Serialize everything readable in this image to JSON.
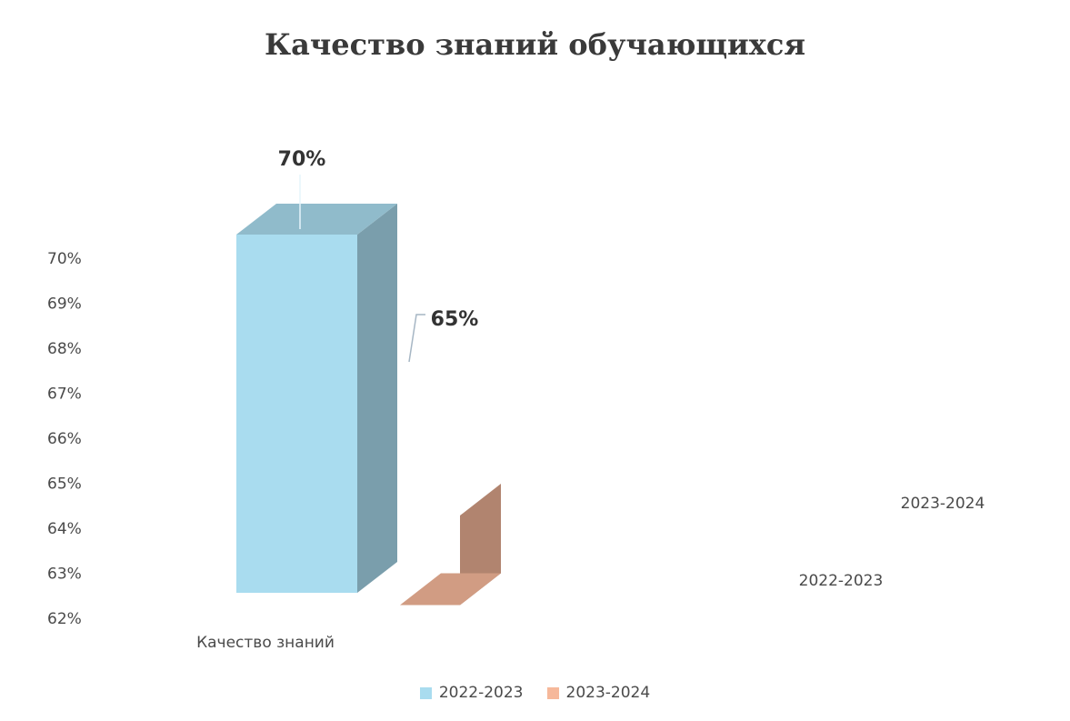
{
  "chart_data": {
    "type": "bar",
    "title": "Качество знаний обучающихся",
    "categories": [
      "Качество знаний"
    ],
    "series": [
      {
        "name": "2022-2023",
        "values": [
          70
        ],
        "color": "#a9dcef",
        "labels": [
          "70%"
        ]
      },
      {
        "name": "2023-2024",
        "values": [
          65
        ],
        "color": "#f6b89a",
        "labels": [
          "65%"
        ]
      }
    ],
    "y_ticks": [
      "62%",
      "63%",
      "64%",
      "65%",
      "66%",
      "67%",
      "68%",
      "69%",
      "70%"
    ],
    "ylim": [
      62,
      70
    ],
    "depth_axis_labels": [
      "2022-2023",
      "2023-2024"
    ],
    "grid": false,
    "legend_position": "bottom",
    "style": "3d-column"
  }
}
